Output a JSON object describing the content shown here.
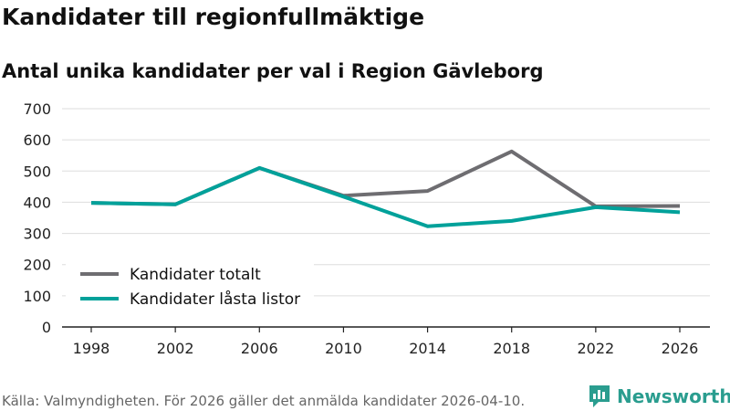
{
  "title": "Kandidater till regionfullmäktige",
  "subtitle": "Antal unika kandidater per val i Region Gävleborg",
  "source": "Källa: Valmyndigheten. För 2026 gäller det anmälda kandidater 2026-04-10.",
  "brand": "Newsworthy",
  "colors": {
    "totalt": "#6e6d71",
    "lasta": "#00a19a",
    "grid": "#dddddd",
    "axis": "#222222"
  },
  "chart_data": {
    "type": "line",
    "title": "Kandidater till regionfullmäktige",
    "subtitle": "Antal unika kandidater per val i Region Gävleborg",
    "xlabel": "",
    "ylabel": "",
    "x": [
      "1998",
      "2002",
      "2006",
      "2010",
      "2014",
      "2018",
      "2022",
      "2026"
    ],
    "ylim": [
      0,
      700
    ],
    "yticks": [
      0,
      100,
      200,
      300,
      400,
      500,
      600,
      700
    ],
    "grid": true,
    "legend_position": "bottom-left",
    "series": [
      {
        "name": "Kandidater totalt",
        "color": "#6e6d71",
        "values": [
          398,
          393,
          510,
          421,
          436,
          563,
          387,
          388
        ]
      },
      {
        "name": "Kandidater låsta listor",
        "color": "#00a19a",
        "values": [
          398,
          393,
          510,
          418,
          323,
          340,
          384,
          368
        ]
      }
    ]
  }
}
